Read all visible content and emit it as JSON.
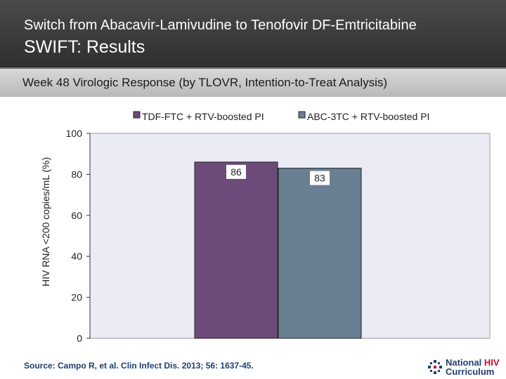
{
  "header": {
    "supertitle": "Switch from Abacavir-Lamivudine to Tenofovir DF-Emtricitabine",
    "title": "SWIFT: Results"
  },
  "subtitle": "Week 48 Virologic Response (by TLOVR, Intention-to-Treat Analysis)",
  "chart_data": {
    "type": "bar",
    "ylabel": "HIV RNA <200 copies/mL (%)",
    "ylim": [
      0,
      100
    ],
    "yticks": [
      "0",
      "20",
      "40",
      "60",
      "80",
      "100"
    ],
    "legend_position": "top",
    "series": [
      {
        "name": "TDF-FTC + RTV-boosted PI",
        "value": 86,
        "label": "86",
        "color": "#6c4b7a"
      },
      {
        "name": "ABC-3TC + RTV-boosted PI",
        "value": 83,
        "label": "83",
        "color": "#6b7f92"
      }
    ],
    "grid": false
  },
  "footer": {
    "source": "Source: Campo R, et al. Clin Infect Dis. 2013; 56: 1637-45.",
    "logo_line1_a": "National",
    "logo_line1_b": "HIV",
    "logo_line2": "Curriculum"
  },
  "colors": {
    "plot_bg": "#ebebf5",
    "logo_blue": "#1f3f70",
    "logo_red": "#c8102e"
  }
}
